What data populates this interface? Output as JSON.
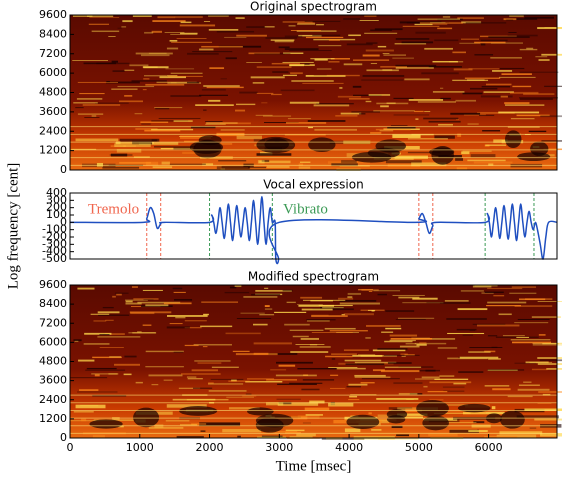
{
  "ylabel": "Log frequency [cent]",
  "chart_data": [
    {
      "type": "heatmap",
      "title": "Original spectrogram",
      "xlim": [
        0,
        6980
      ],
      "ylim": [
        0,
        9600
      ],
      "yticks": [
        0,
        1200,
        2400,
        3600,
        4800,
        6000,
        7200,
        8400,
        9600
      ]
    },
    {
      "type": "line",
      "title": "Vocal expression",
      "xlim": [
        0,
        6980
      ],
      "ylim": [
        -500,
        400
      ],
      "yticks": [
        -500,
        -400,
        -300,
        -200,
        -100,
        0,
        100,
        200,
        300,
        400
      ],
      "series": [
        {
          "color": "#1f4fc0",
          "x": [
            0,
            1050,
            1100,
            1150,
            1200,
            1250,
            1300,
            1350,
            2000,
            2030,
            2060,
            2090,
            2120,
            2150,
            2180,
            2210,
            2240,
            2270,
            2300,
            2330,
            2360,
            2390,
            2420,
            2450,
            2480,
            2510,
            2540,
            2570,
            2600,
            2630,
            2660,
            2690,
            2720,
            2750,
            2780,
            2810,
            2840,
            2870,
            2900,
            2940,
            2950,
            2990,
            3000,
            4950,
            5000,
            5050,
            5100,
            5150,
            5200,
            5250,
            5950,
            5980,
            6010,
            6040,
            6070,
            6100,
            6130,
            6160,
            6190,
            6220,
            6250,
            6280,
            6310,
            6340,
            6370,
            6400,
            6430,
            6460,
            6490,
            6520,
            6550,
            6580,
            6610,
            6640,
            6670,
            6700,
            6740,
            6780,
            6820,
            6860,
            6980
          ],
          "values": [
            0,
            0,
            50,
            200,
            120,
            -80,
            -20,
            0,
            0,
            100,
            0,
            -150,
            0,
            200,
            0,
            -220,
            0,
            250,
            0,
            -250,
            0,
            230,
            0,
            -200,
            0,
            200,
            0,
            -250,
            0,
            300,
            0,
            -300,
            0,
            350,
            0,
            -300,
            0,
            200,
            0,
            0,
            -500,
            -500,
            0,
            0,
            50,
            120,
            0,
            -150,
            -50,
            0,
            0,
            120,
            0,
            -200,
            0,
            200,
            0,
            -220,
            0,
            230,
            0,
            -230,
            0,
            250,
            0,
            -250,
            0,
            250,
            0,
            -200,
            0,
            150,
            0,
            -100,
            0,
            -100,
            -300,
            -500,
            -200,
            0,
            0
          ]
        }
      ],
      "vlines": [
        {
          "x": 1100,
          "color": "#f0654d"
        },
        {
          "x": 1300,
          "color": "#f0654d"
        },
        {
          "x": 5000,
          "color": "#f0654d"
        },
        {
          "x": 5200,
          "color": "#f0654d"
        },
        {
          "x": 2000,
          "color": "#3b9a55"
        },
        {
          "x": 2900,
          "color": "#3b9a55"
        },
        {
          "x": 5950,
          "color": "#3b9a55"
        },
        {
          "x": 6650,
          "color": "#3b9a55"
        }
      ],
      "annotations": [
        {
          "text": "Tremolo",
          "color": "#f0654d"
        },
        {
          "text": "Vibrato",
          "color": "#3b9a55"
        }
      ]
    },
    {
      "type": "heatmap",
      "title": "Modified spectrogram",
      "xlim": [
        0,
        6980
      ],
      "ylim": [
        0,
        9600
      ],
      "yticks": [
        0,
        1200,
        2400,
        3600,
        4800,
        6000,
        7200,
        8400,
        9600
      ],
      "xticks": [
        0,
        1000,
        2000,
        3000,
        4000,
        5000,
        6000
      ],
      "xlabel": "Time [msec]"
    }
  ]
}
